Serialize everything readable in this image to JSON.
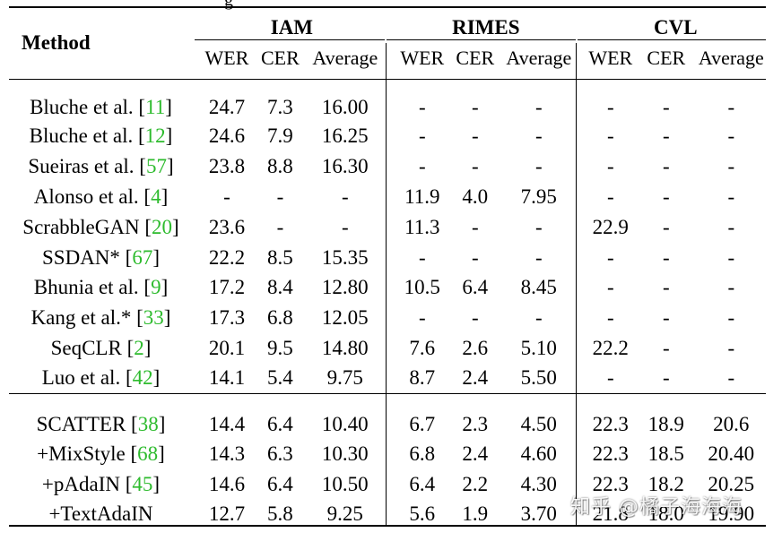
{
  "caption_fragment": "g",
  "header": {
    "method_label": "Method",
    "groups": [
      "IAM",
      "RIMES",
      "CVL"
    ],
    "subheaders": [
      "WER",
      "CER",
      "Average"
    ]
  },
  "rows": [
    {
      "method": "Bluche et al. [",
      "ref": "11",
      "close": "]",
      "cells": [
        "24.7",
        "7.3",
        "16.00",
        "-",
        "-",
        "-",
        "-",
        "-",
        "-"
      ],
      "bold": []
    },
    {
      "method": "Bluche et al. [",
      "ref": "12",
      "close": "]",
      "cells": [
        "24.6",
        "7.9",
        "16.25",
        "-",
        "-",
        "-",
        "-",
        "-",
        "-"
      ],
      "bold": []
    },
    {
      "method": "Sueiras et al. [",
      "ref": "57",
      "close": "]",
      "cells": [
        "23.8",
        "8.8",
        "16.30",
        "-",
        "-",
        "-",
        "-",
        "-",
        "-"
      ],
      "bold": []
    },
    {
      "method": "Alonso et al. [",
      "ref": "4",
      "close": "]",
      "cells": [
        "-",
        "-",
        "-",
        "11.9",
        "4.0",
        "7.95",
        "-",
        "-",
        "-"
      ],
      "bold": []
    },
    {
      "method": "ScrabbleGAN [",
      "ref": "20",
      "close": "]",
      "cells": [
        "23.6",
        "-",
        "-",
        "11.3",
        "-",
        "-",
        "22.9",
        "-",
        "-"
      ],
      "bold": []
    },
    {
      "method": "SSDAN* [",
      "ref": "67",
      "close": "]",
      "cells": [
        "22.2",
        "8.5",
        "15.35",
        "-",
        "-",
        "-",
        "-",
        "-",
        "-"
      ],
      "bold": []
    },
    {
      "method": "Bhunia et al. [",
      "ref": "9",
      "close": "]",
      "cells": [
        "17.2",
        "8.4",
        "12.80",
        "10.5",
        "6.4",
        "8.45",
        "-",
        "-",
        "-"
      ],
      "bold": []
    },
    {
      "method": "Kang et al.* [",
      "ref": "33",
      "close": "]",
      "cells": [
        "17.3",
        "6.8",
        "12.05",
        "-",
        "-",
        "-",
        "-",
        "-",
        "-"
      ],
      "bold": []
    },
    {
      "method": "SeqCLR [",
      "ref": "2",
      "close": "]",
      "cells": [
        "20.1",
        "9.5",
        "14.80",
        "7.6",
        "2.6",
        "5.10",
        "22.2",
        "-",
        "-"
      ],
      "bold": []
    },
    {
      "method": "Luo et al. [",
      "ref": "42",
      "close": "]",
      "cells": [
        "14.1",
        "5.4",
        "9.75",
        "8.7",
        "2.4",
        "5.50",
        "-",
        "-",
        "-"
      ],
      "bold": [
        1
      ]
    },
    {
      "method": "SCATTER [",
      "ref": "38",
      "close": "]",
      "cells": [
        "14.4",
        "6.4",
        "10.40",
        "6.7",
        "2.3",
        "4.50",
        "22.3",
        "18.9",
        "20.6"
      ],
      "bold": []
    },
    {
      "method": "+MixStyle [",
      "ref": "68",
      "close": "]",
      "cells": [
        "14.3",
        "6.3",
        "10.30",
        "6.8",
        "2.4",
        "4.60",
        "22.3",
        "18.5",
        "20.40"
      ],
      "bold": []
    },
    {
      "method": "+pAdaIN [",
      "ref": "45",
      "close": "]",
      "cells": [
        "14.6",
        "6.4",
        "10.50",
        "6.4",
        "2.2",
        "4.30",
        "22.3",
        "18.2",
        "20.25"
      ],
      "bold": []
    },
    {
      "method": "+TextAdaIN",
      "ref": "",
      "close": "",
      "cells": [
        "12.7",
        "5.8",
        "9.25",
        "5.6",
        "1.9",
        "3.70",
        "21.8",
        "18.0",
        "19.90"
      ],
      "bold": [
        0,
        2,
        3,
        4,
        5,
        6,
        7,
        8
      ]
    }
  ],
  "watermark": "知乎 @橘子海海海",
  "colors": {
    "ref": "#2dbb2d",
    "text": "#000000",
    "background": "#ffffff"
  }
}
